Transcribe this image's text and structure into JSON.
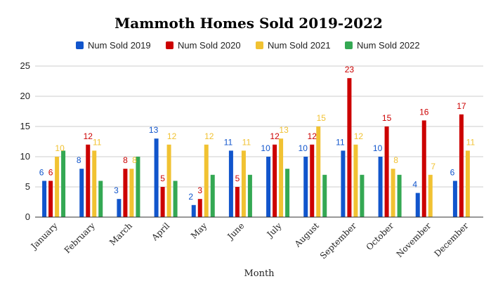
{
  "chart_data": {
    "type": "bar",
    "title": "Mammoth Homes Sold 2019-2022",
    "xlabel": "Month",
    "ylabel": "",
    "ylim": [
      0,
      25
    ],
    "yticks": [
      0,
      5,
      10,
      15,
      20,
      25
    ],
    "grid": true,
    "legend_position": "top",
    "categories": [
      "January",
      "February",
      "March",
      "April",
      "May",
      "June",
      "July",
      "August",
      "September",
      "October",
      "November",
      "December"
    ],
    "series": [
      {
        "name": "Num Sold 2019",
        "color": "#1155cc",
        "values": [
          6,
          8,
          3,
          13,
          2,
          11,
          10,
          10,
          11,
          10,
          4,
          6
        ]
      },
      {
        "name": "Num Sold 2020",
        "color": "#cc0000",
        "values": [
          6,
          12,
          8,
          5,
          3,
          5,
          12,
          12,
          23,
          15,
          16,
          17
        ]
      },
      {
        "name": "Num Sold 2021",
        "color": "#f1c232",
        "values": [
          10,
          11,
          8,
          12,
          12,
          11,
          13,
          15,
          12,
          8,
          7,
          11
        ]
      },
      {
        "name": "Num Sold 2022",
        "color": "#34a853",
        "values": [
          11,
          6,
          10,
          6,
          7,
          7,
          8,
          7,
          7,
          7,
          null,
          null
        ]
      }
    ],
    "data_labels_series": [
      0,
      1,
      2
    ]
  }
}
